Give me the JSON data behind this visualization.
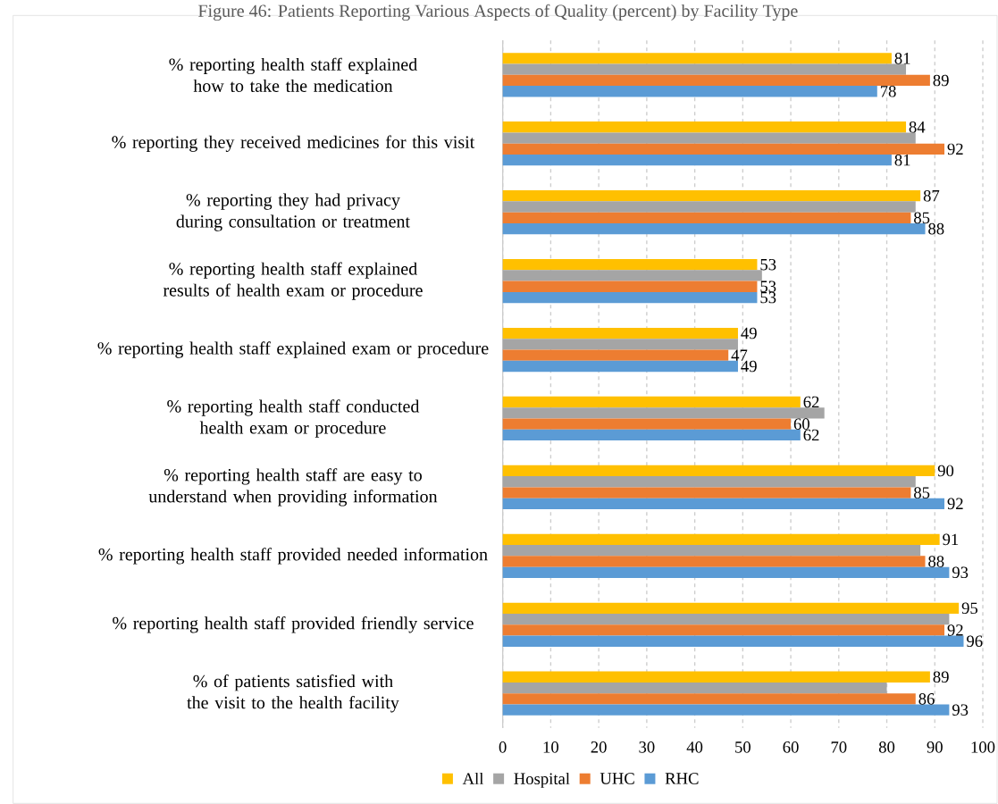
{
  "chart_data": {
    "type": "bar",
    "orientation": "horizontal",
    "title": "Figure 46: Patients Reporting Various Aspects of Quality (percent) by Facility Type",
    "categories": [
      "% reporting health staff explained how to take the medication",
      "% reporting they received medicines for this visit",
      "% reporting they had privacy during consultation or treatment",
      "% reporting health staff explained results of health exam or procedure",
      "% reporting health staff explained exam or procedure",
      "% reporting health staff conducted health exam or procedure",
      "% reporting health staff are easy to understand when providing information",
      "% reporting health staff provided needed information",
      "% reporting health staff provided friendly service",
      "% of patients satisfied with the visit to the health facility"
    ],
    "series": [
      {
        "name": "All",
        "color": "#ffc000",
        "values": [
          81,
          84,
          87,
          53,
          49,
          62,
          90,
          91,
          95,
          89
        ],
        "value_labels": [
          "81",
          "84",
          "87",
          "53",
          "49",
          "62",
          "90",
          "91",
          "95",
          "89"
        ]
      },
      {
        "name": "Hospital",
        "color": "#a5a5a5",
        "values": [
          84,
          86,
          86,
          54,
          49,
          67,
          86,
          87,
          93,
          80
        ]
      },
      {
        "name": "UHC",
        "color": "#ed7d31",
        "values": [
          89,
          92,
          85,
          53,
          47,
          60,
          85,
          88,
          92,
          86
        ],
        "value_labels": [
          "89",
          "92",
          "85",
          "53",
          "47",
          "60",
          "85",
          "88",
          "92",
          "86"
        ]
      },
      {
        "name": "RHC",
        "color": "#5b9bd5",
        "values": [
          78,
          81,
          88,
          53,
          49,
          62,
          92,
          93,
          96,
          93
        ],
        "value_labels": [
          "78",
          "81",
          "88",
          "53",
          "49",
          "62",
          "92",
          "93",
          "96",
          "93"
        ]
      }
    ],
    "xlim": [
      0,
      100
    ],
    "xticks": [
      0,
      10,
      20,
      30,
      40,
      50,
      60,
      70,
      80,
      90,
      100
    ],
    "grid": "x",
    "legend": "bottom"
  }
}
